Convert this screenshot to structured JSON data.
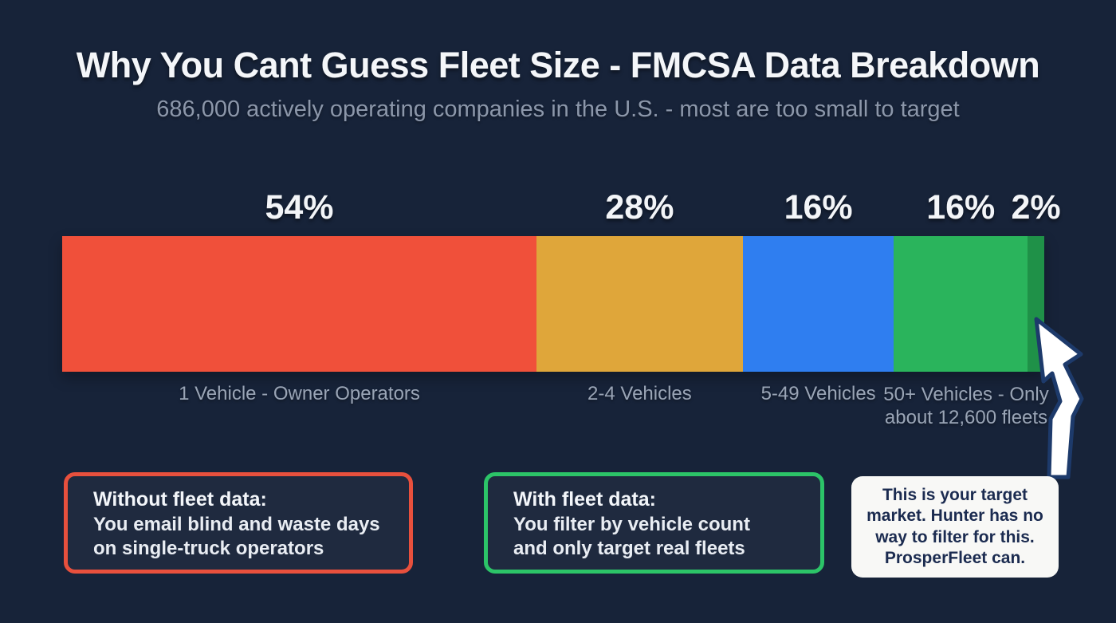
{
  "chart_data": {
    "type": "bar",
    "variant": "horizontal-stacked-percentage",
    "title": "Why You Cant Guess Fleet Size - FMCSA Data Breakdown",
    "subtitle": "686,000 actively operating companies in the U.S. - most are too small to target",
    "legend": "none",
    "axes": "none",
    "segments": [
      {
        "pct_label": "54%",
        "value": 54,
        "category": "1 Vehicle - Owner Operators",
        "color": "#f0503a",
        "visual_width_pct": 48.3
      },
      {
        "pct_label": "28%",
        "value": 28,
        "category": "2-4 Vehicles",
        "color": "#dfa63a",
        "visual_width_pct": 21.0
      },
      {
        "pct_label": "16%",
        "value": 16,
        "category": "5-49 Vehicles",
        "color": "#2f7ef0",
        "visual_width_pct": 15.4
      },
      {
        "pct_label": "16%",
        "value": 16,
        "category": "50+ Vehicles - Only about 12,600 fleets",
        "category_wrapped": "50+ Vehicles - Only\nabout 12,600 fleets",
        "color": "#2ab45c",
        "visual_width_pct": 13.6
      },
      {
        "pct_label": "2%",
        "value": 2,
        "category": "",
        "color": "#1f9148",
        "visual_width_pct": 1.7
      }
    ]
  },
  "callouts": [
    {
      "heading": "Without fleet data:",
      "body": "You email blind and waste days\non single-truck operators",
      "accent": "#e8503d"
    },
    {
      "heading": "With fleet data:",
      "body": "You filter by vehicle count\nand only target real fleets",
      "accent": "#2cc468"
    },
    {
      "body": "This is your target\nmarket. Hunter has no\nway to filter for this.\nProsperFleet can."
    }
  ],
  "colors": {
    "background": "#172339",
    "title": "#f4f6f9",
    "subtitle": "#8c97aa",
    "percent_label": "#f3f5f8",
    "category_label": "#9aa5b6",
    "callout_red_border": "#e8503d",
    "callout_green_border": "#2cc468",
    "speech_bubble_bg": "#f8f8f6",
    "speech_bubble_text": "#1b2b50",
    "cursor_fill": "#ffffff",
    "cursor_outline": "#1d3a6b"
  }
}
